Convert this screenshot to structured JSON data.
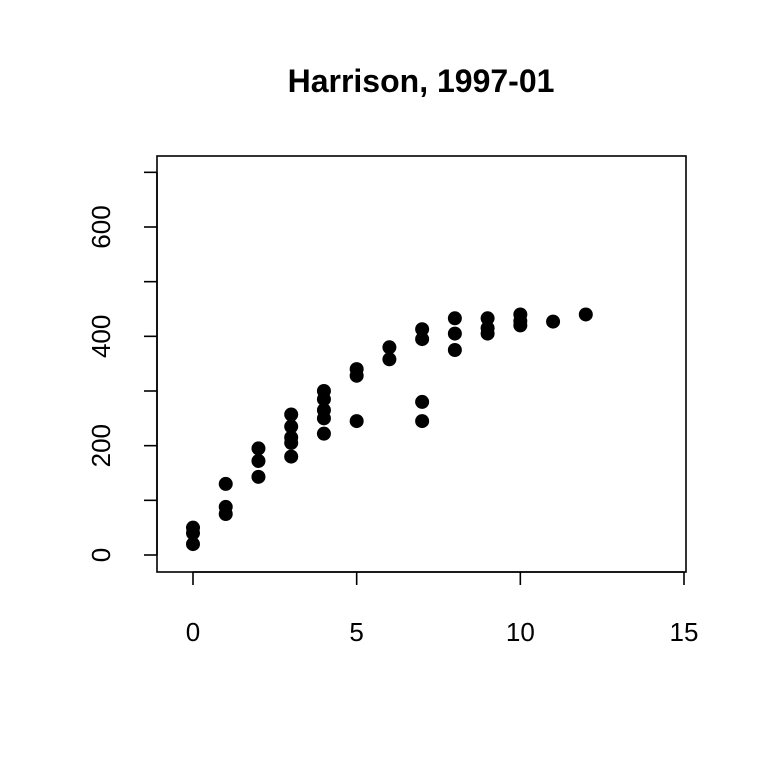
{
  "chart_data": {
    "type": "scatter",
    "title": "Harrison, 1997-01",
    "xlabel": "",
    "ylabel": "",
    "xlim": [
      0,
      15
    ],
    "ylim": [
      0,
      700
    ],
    "x_ticks": [
      0,
      5,
      10,
      15
    ],
    "y_major_ticks": [
      0,
      200,
      400,
      600
    ],
    "y_minor_ticks": [
      100,
      300,
      500,
      700
    ],
    "grid": false,
    "legend": "none",
    "marker_color": "#000000",
    "series": [
      {
        "points": [
          {
            "x": 0,
            "y": 20
          },
          {
            "x": 0,
            "y": 40
          },
          {
            "x": 0,
            "y": 50
          },
          {
            "x": 1,
            "y": 75
          },
          {
            "x": 1,
            "y": 88
          },
          {
            "x": 1,
            "y": 130
          },
          {
            "x": 2,
            "y": 143
          },
          {
            "x": 2,
            "y": 172
          },
          {
            "x": 2,
            "y": 195
          },
          {
            "x": 3,
            "y": 180
          },
          {
            "x": 3,
            "y": 205
          },
          {
            "x": 3,
            "y": 215
          },
          {
            "x": 3,
            "y": 235
          },
          {
            "x": 3,
            "y": 257
          },
          {
            "x": 4,
            "y": 222
          },
          {
            "x": 4,
            "y": 250
          },
          {
            "x": 4,
            "y": 265
          },
          {
            "x": 4,
            "y": 285
          },
          {
            "x": 4,
            "y": 300
          },
          {
            "x": 5,
            "y": 245
          },
          {
            "x": 5,
            "y": 328
          },
          {
            "x": 5,
            "y": 340
          },
          {
            "x": 6,
            "y": 358
          },
          {
            "x": 6,
            "y": 380
          },
          {
            "x": 7,
            "y": 245
          },
          {
            "x": 7,
            "y": 280
          },
          {
            "x": 7,
            "y": 395
          },
          {
            "x": 7,
            "y": 413
          },
          {
            "x": 8,
            "y": 375
          },
          {
            "x": 8,
            "y": 405
          },
          {
            "x": 8,
            "y": 433
          },
          {
            "x": 9,
            "y": 405
          },
          {
            "x": 9,
            "y": 415
          },
          {
            "x": 9,
            "y": 433
          },
          {
            "x": 10,
            "y": 420
          },
          {
            "x": 10,
            "y": 428
          },
          {
            "x": 10,
            "y": 440
          },
          {
            "x": 11,
            "y": 427
          },
          {
            "x": 12,
            "y": 440
          }
        ]
      }
    ]
  }
}
